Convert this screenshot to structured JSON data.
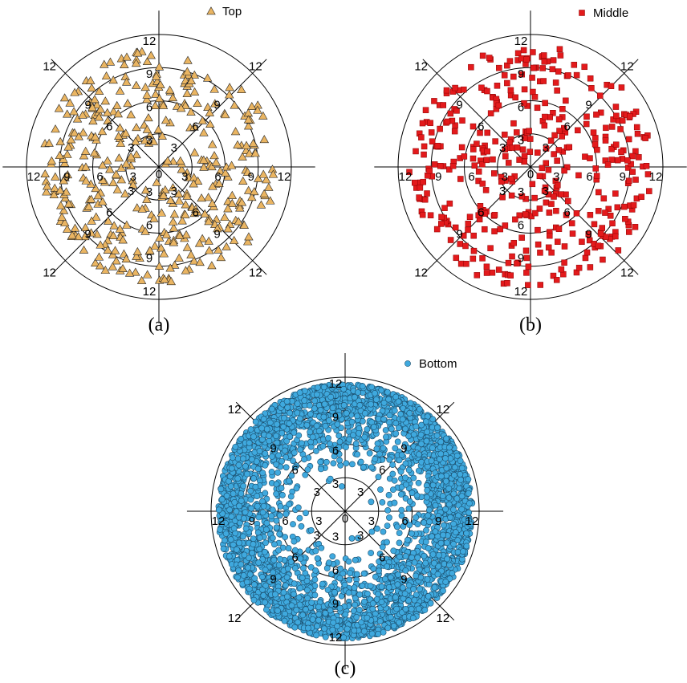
{
  "colors": {
    "top": "#EAB562",
    "middle": "#E31A1C",
    "bottom": "#3FA9DE",
    "outline": "#222222",
    "axis": "#000000"
  },
  "chart_data": [
    {
      "type": "scatter",
      "coordinate_system": "polar",
      "caption": "(a)",
      "legend": {
        "label": "Top",
        "marker": "triangle",
        "placement": "top-right"
      },
      "rings": [
        3,
        6,
        9,
        12
      ],
      "spokes_deg": [
        0,
        45,
        90,
        135,
        180,
        225,
        270,
        315
      ],
      "radial_range": [
        0,
        12
      ],
      "points": []
    },
    {
      "type": "scatter",
      "coordinate_system": "polar",
      "caption": "(b)",
      "legend": {
        "label": "Middle",
        "marker": "square",
        "placement": "top-right"
      },
      "rings": [
        3,
        6,
        9,
        12
      ],
      "spokes_deg": [
        0,
        45,
        90,
        135,
        180,
        225,
        270,
        315
      ],
      "radial_range": [
        0,
        12
      ],
      "points": []
    },
    {
      "type": "scatter",
      "coordinate_system": "polar",
      "caption": "(c)",
      "legend": {
        "label": "Bottom",
        "marker": "circle",
        "placement": "top-right"
      },
      "rings": [
        3,
        6,
        9,
        12
      ],
      "spokes_deg": [
        0,
        45,
        90,
        135,
        180,
        225,
        270,
        315
      ],
      "radial_range": [
        0,
        12
      ],
      "points": []
    }
  ]
}
